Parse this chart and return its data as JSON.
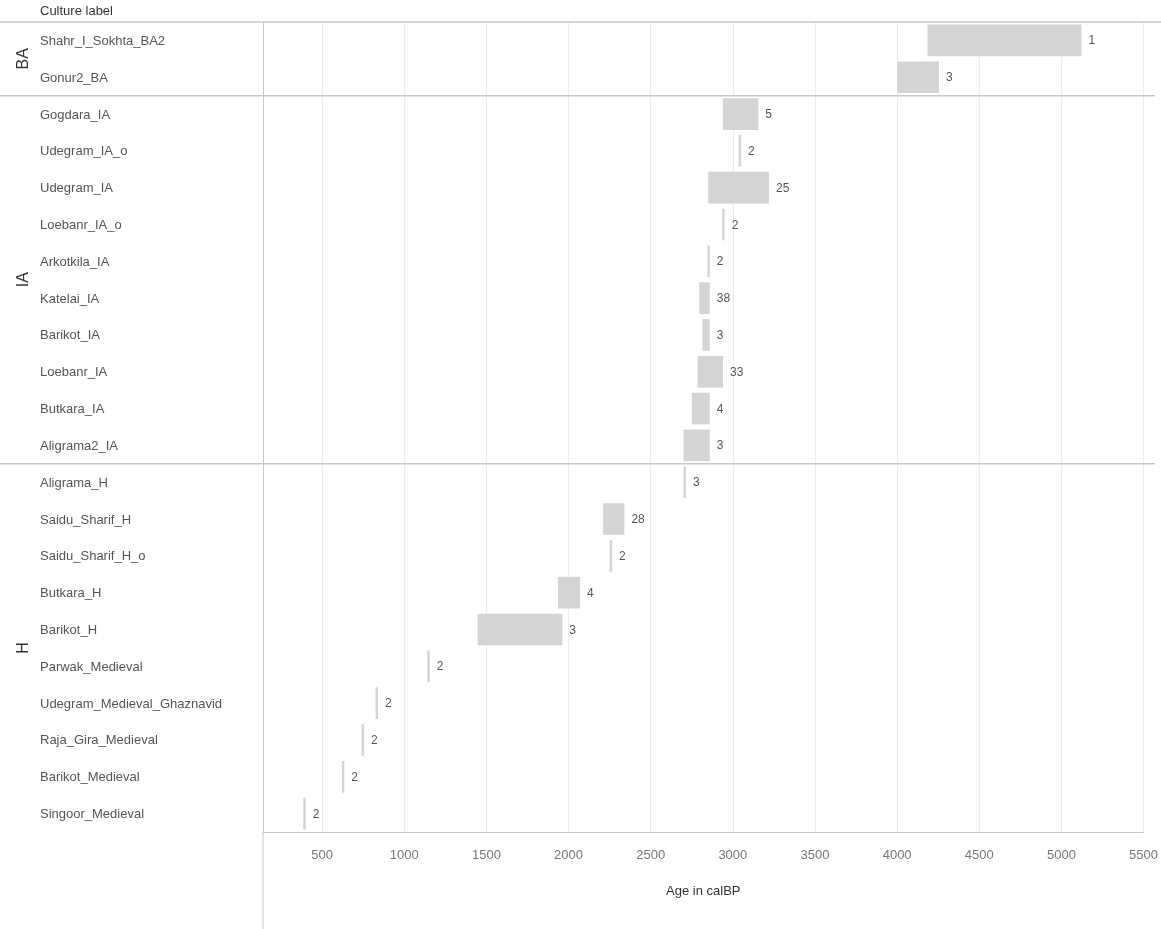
{
  "chart_data": {
    "type": "bar",
    "orientation": "horizontal",
    "ylabel": "Culture label",
    "xlabel": "Age in calBP",
    "categories": [
      "Shahr_I_Sokhta_BA2",
      "Gonur2_BA",
      "Gogdara_IA",
      "Udegram_IA_o",
      "Udegram_IA",
      "Loebanr_IA_o",
      "Arkotkila_IA",
      "Katelai_IA",
      "Barikot_IA",
      "Loebanr_IA",
      "Butkara_IA",
      "Aligrama2_IA",
      "Aligrama_H",
      "Saidu_Sharif_H",
      "Saidu_Sharif_H_o",
      "Butkara_H",
      "Barikot_H",
      "Parwak_Medieval",
      "Udegram_Medieval_Ghaznavid",
      "Raja_Gira_Medieval",
      "Barikot_Medieval",
      "Singoor_Medieval"
    ],
    "series": [
      {
        "color": "#d4d4d4",
        "base": [
          4185,
          4000,
          null,
          null,
          null,
          null,
          null,
          null,
          null,
          null,
          null,
          null,
          null,
          null,
          null,
          null,
          null,
          null,
          null,
          null,
          null,
          null
        ],
        "values": [
          937,
          255,
          null,
          null,
          null,
          null,
          null,
          null,
          null,
          null,
          null,
          null,
          null,
          null,
          null,
          null,
          null,
          null,
          null,
          null,
          null,
          null
        ]
      },
      {
        "color": "#d4d4d4",
        "base": [
          null,
          null,
          2940,
          3035,
          2850,
          2935,
          2845,
          2795,
          2815,
          2785,
          2750,
          2700,
          null,
          null,
          null,
          null,
          null,
          null,
          null,
          null,
          null,
          null
        ],
        "values": [
          null,
          null,
          215,
          15,
          370,
          15,
          15,
          65,
          45,
          155,
          110,
          160,
          null,
          null,
          null,
          null,
          null,
          null,
          null,
          null,
          null,
          null
        ]
      },
      {
        "color": "#d4d4d4",
        "base": [
          null,
          null,
          null,
          null,
          null,
          null,
          null,
          null,
          null,
          null,
          null,
          null,
          2700,
          2210,
          2250,
          1935,
          1447,
          1140,
          825,
          740,
          620,
          385
        ],
        "values": [
          null,
          null,
          null,
          null,
          null,
          null,
          null,
          null,
          null,
          null,
          null,
          null,
          15,
          130,
          15,
          135,
          515,
          15,
          15,
          15,
          15,
          15
        ]
      }
    ],
    "xlim": [
      140,
      5500
    ],
    "xticks": [
      500,
      1000,
      1500,
      2000,
      2500,
      3000,
      3500,
      4000,
      4500,
      5000,
      5500
    ],
    "grid": "x",
    "annotations": [
      "BA",
      "IA",
      "H",
      {
        "text": "1",
        "x": 5122,
        "y": "Shahr_I_Sokhta_BA2"
      },
      {
        "text": "3",
        "x": 4255,
        "y": "Gonur2_BA"
      },
      {
        "text": "5",
        "x": 3155,
        "y": "Gogdara_IA"
      },
      {
        "text": "2",
        "x": 3050,
        "y": "Udegram_IA_o"
      },
      {
        "text": "25",
        "x": 3220,
        "y": "Udegram_IA"
      },
      {
        "text": "2",
        "x": 2950,
        "y": "Loebanr_IA_o"
      },
      {
        "text": "2",
        "x": 2860,
        "y": "Arkotkila_IA"
      },
      {
        "text": "38",
        "x": 2860,
        "y": "Katelai_IA"
      },
      {
        "text": "3",
        "x": 2860,
        "y": "Barikot_IA"
      },
      {
        "text": "33",
        "x": 2940,
        "y": "Loebanr_IA"
      },
      {
        "text": "4",
        "x": 2860,
        "y": "Butkara_IA"
      },
      {
        "text": "3",
        "x": 2860,
        "y": "Aligrama2_IA"
      },
      {
        "text": "3",
        "x": 2715,
        "y": "Aligrama_H"
      },
      {
        "text": "28",
        "x": 2340,
        "y": "Saidu_Sharif_H"
      },
      {
        "text": "2",
        "x": 2265,
        "y": "Saidu_Sharif_H_o"
      },
      {
        "text": "4",
        "x": 2070,
        "y": "Butkara_H"
      },
      {
        "text": "3",
        "x": 1962,
        "y": "Barikot_H"
      },
      {
        "text": "2",
        "x": 1155,
        "y": "Parwak_Medieval"
      },
      {
        "text": "2",
        "x": 840,
        "y": "Udegram_Medieval_Ghaznavid"
      },
      {
        "text": "2",
        "x": 755,
        "y": "Raja_Gira_Medieval"
      },
      {
        "text": "2",
        "x": 635,
        "y": "Barikot_Medieval"
      },
      {
        "text": "2",
        "x": 400,
        "y": "Singoor_Medieval"
      }
    ]
  }
}
